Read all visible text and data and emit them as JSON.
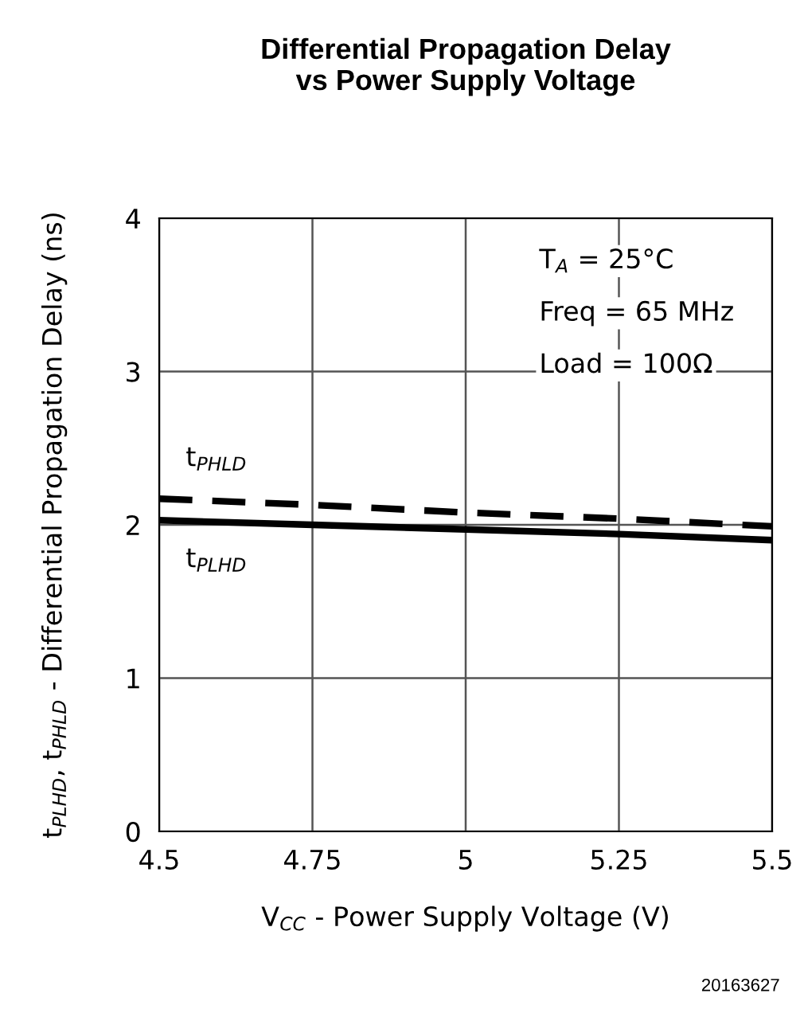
{
  "chart_data": {
    "type": "line",
    "title": "Differential Propagation Delay\nvs Power Supply Voltage",
    "xlabel": "V$_{CC}$ - Power Supply Voltage (V)",
    "ylabel": "t$_{PLHD}$, t$_{PHLD}$ - Differential Propagation Delay (ns)",
    "x": [
      4.5,
      4.75,
      5,
      5.25,
      5.5
    ],
    "series": [
      {
        "name": "t$_{PHLD}$",
        "color": "#000000",
        "line_style": "dashed",
        "values": [
          2.17,
          2.13,
          2.08,
          2.04,
          1.99
        ]
      },
      {
        "name": "t$_{PLHD}$",
        "color": "#000000",
        "line_style": "solid",
        "values": [
          2.03,
          2.0,
          1.97,
          1.94,
          1.9
        ]
      }
    ],
    "xlim": [
      4.5,
      5.5
    ],
    "xticks": [
      4.5,
      4.75,
      5,
      5.25,
      5.5
    ],
    "ylim": [
      0,
      4
    ],
    "yticks": [
      0,
      1,
      2,
      3,
      4
    ],
    "grid": true,
    "marker": "none",
    "annotations": [
      "T$_{A}$ = 25°C",
      "Freq = 65 MHz",
      "Load = 100Ω",
      "20163627"
    ]
  }
}
